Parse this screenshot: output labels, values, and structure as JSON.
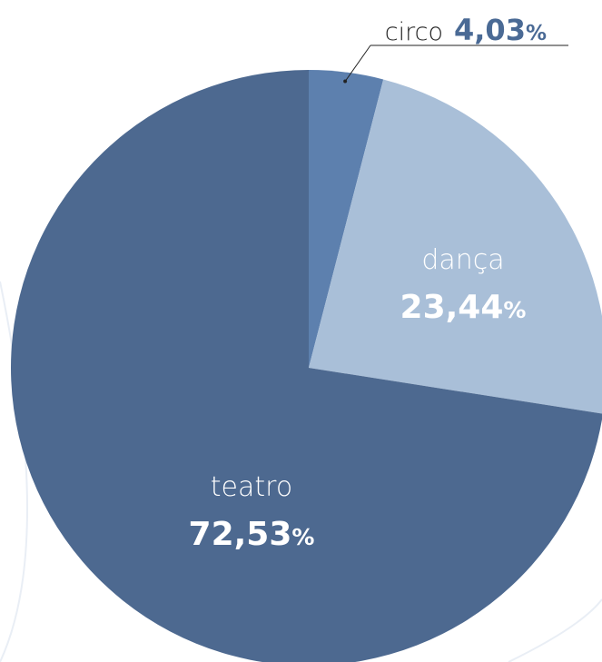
{
  "chart_data": {
    "type": "pie",
    "slices": [
      {
        "label": "circo",
        "value_label": "4,03",
        "value": 4.03,
        "color": "#5d80ae",
        "label_color": "#4a6a95",
        "text_color": "#222222"
      },
      {
        "label": "dança",
        "value_label": "23,44",
        "value": 23.44,
        "color": "#a9bfd8",
        "label_color": "#ffffff",
        "text_color": "#ffffff"
      },
      {
        "label": "teatro",
        "value_label": "72,53",
        "value": 72.53,
        "color": "#4d6990",
        "label_color": "#ffffff",
        "text_color": "#ffffff"
      }
    ],
    "unit": "%",
    "start_angle": "12 o'clock",
    "direction": "clockwise"
  }
}
